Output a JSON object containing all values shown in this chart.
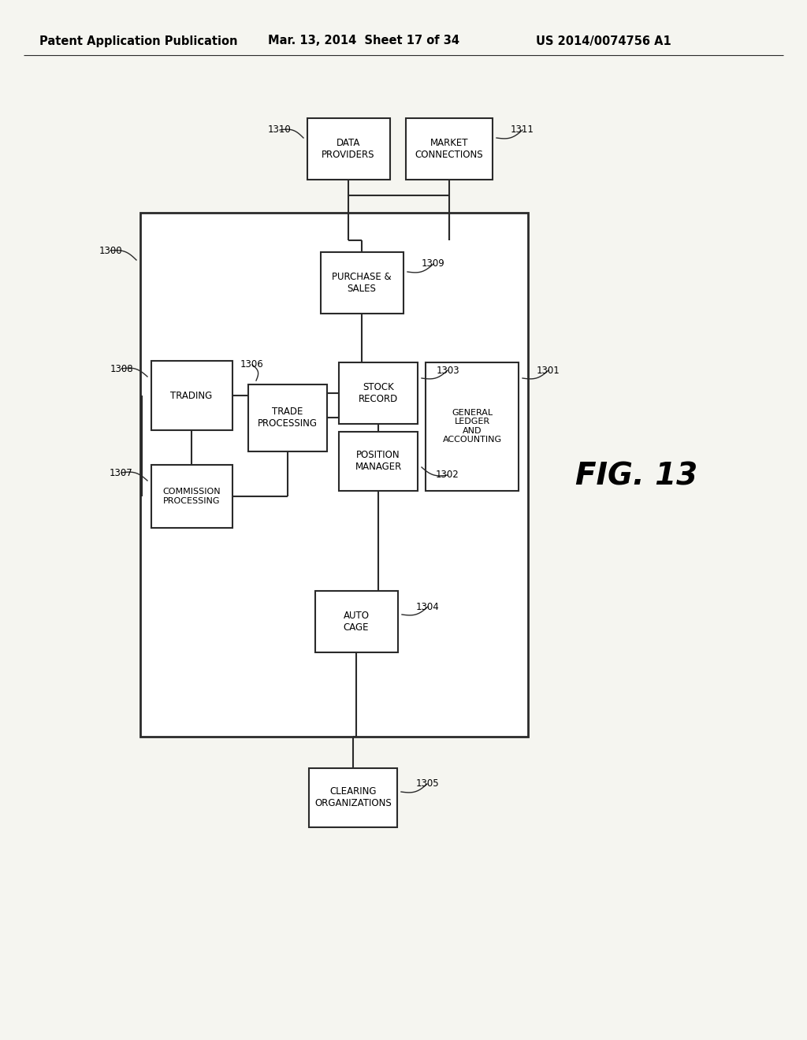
{
  "header_left": "Patent Application Publication",
  "header_mid": "Mar. 13, 2014  Sheet 17 of 34",
  "header_right": "US 2014/0074756 A1",
  "fig_label": "FIG. 13",
  "background_color": "#f5f5f0",
  "line_color": "#2a2a2a",
  "box_fill": "#ffffff",
  "font_size_box": 8.5,
  "font_size_header": 10.5,
  "font_size_id": 8.5,
  "font_size_fig": 28
}
